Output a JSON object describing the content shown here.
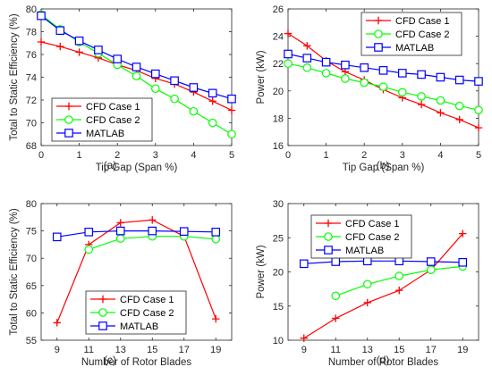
{
  "colors": {
    "cfd1": "#ff0000",
    "cfd2": "#00ff00",
    "matlab": "#0000ff",
    "axis": "#262626",
    "grid": "#ebebeb"
  },
  "chart_data": [
    {
      "panel_label": "(a)",
      "type": "line",
      "xlabel": "Tip Gap (Span %)",
      "ylabel": "Total to Static Efficiency (%)",
      "xlim": [
        0,
        5
      ],
      "ylim": [
        68,
        80
      ],
      "xticks": [
        0,
        1,
        2,
        3,
        4,
        5
      ],
      "xtick_labels": [
        "0",
        "1",
        "2",
        "3",
        "4",
        "5"
      ],
      "yticks": [
        68,
        70,
        72,
        74,
        76,
        78,
        80
      ],
      "ytick_labels": [
        "68",
        "70",
        "72",
        "74",
        "76",
        "78",
        "80"
      ],
      "grid": "off",
      "legend_position": "bottom-left",
      "series": [
        {
          "name": "CFD Case 1",
          "marker": "plus",
          "x": [
            0,
            0.5,
            1,
            1.5,
            2,
            2.5,
            3,
            3.5,
            4,
            4.5,
            5
          ],
          "y": [
            77.1,
            76.7,
            76.2,
            75.7,
            75.1,
            74.6,
            73.9,
            73.4,
            72.7,
            71.9,
            71.1
          ]
        },
        {
          "name": "CFD Case 2",
          "marker": "circle",
          "x": [
            0,
            0.5,
            1,
            1.5,
            2,
            2.5,
            3,
            3.5,
            4,
            4.5,
            5
          ],
          "y": [
            79.5,
            78.2,
            77.1,
            76.1,
            75.1,
            74.1,
            73.0,
            72.1,
            71.0,
            70.0,
            69.0
          ]
        },
        {
          "name": "MATLAB",
          "marker": "square",
          "x": [
            0,
            0.5,
            1,
            1.5,
            2,
            2.5,
            3,
            3.5,
            4,
            4.5,
            5
          ],
          "y": [
            79.4,
            78.1,
            77.2,
            76.4,
            75.6,
            74.9,
            74.3,
            73.7,
            73.1,
            72.6,
            72.1
          ]
        }
      ]
    },
    {
      "panel_label": "(b)",
      "type": "line",
      "xlabel": "Tip Gap (Span %)",
      "ylabel": "Power (kW)",
      "xlim": [
        0,
        5
      ],
      "ylim": [
        16,
        26
      ],
      "xticks": [
        0,
        1,
        2,
        3,
        4,
        5
      ],
      "xtick_labels": [
        "0",
        "1",
        "2",
        "3",
        "4",
        "5"
      ],
      "yticks": [
        16,
        18,
        20,
        22,
        24,
        26
      ],
      "ytick_labels": [
        "16",
        "18",
        "20",
        "22",
        "24",
        "26"
      ],
      "grid": "off",
      "legend_position": "top-right",
      "series": [
        {
          "name": "CFD Case 1",
          "marker": "plus",
          "x": [
            0,
            0.5,
            1,
            1.5,
            2,
            2.5,
            3,
            3.5,
            4,
            4.5,
            5
          ],
          "y": [
            24.2,
            23.3,
            22.2,
            21.4,
            20.8,
            20.1,
            19.5,
            19.0,
            18.4,
            17.9,
            17.3
          ]
        },
        {
          "name": "CFD Case 2",
          "marker": "circle",
          "x": [
            0,
            0.5,
            1,
            1.5,
            2,
            2.5,
            3,
            3.5,
            4,
            4.5,
            5
          ],
          "y": [
            22.0,
            21.7,
            21.3,
            20.9,
            20.6,
            20.3,
            19.9,
            19.6,
            19.3,
            18.9,
            18.6
          ]
        },
        {
          "name": "MATLAB",
          "marker": "square",
          "x": [
            0,
            0.5,
            1,
            1.5,
            2,
            2.5,
            3,
            3.5,
            4,
            4.5,
            5
          ],
          "y": [
            22.7,
            22.4,
            22.1,
            21.9,
            21.7,
            21.5,
            21.3,
            21.2,
            21.0,
            20.8,
            20.7
          ]
        }
      ]
    },
    {
      "panel_label": "(c)",
      "type": "line",
      "xlabel": "Number of Rotor Blades",
      "ylabel": "Total to Static Efficiency (%)",
      "xlim": [
        8,
        20
      ],
      "ylim": [
        55,
        80
      ],
      "xticks": [
        9,
        11,
        13,
        15,
        17,
        19
      ],
      "xtick_labels": [
        "9",
        "11",
        "13",
        "15",
        "17",
        "19"
      ],
      "yticks": [
        55,
        60,
        65,
        70,
        75,
        80
      ],
      "ytick_labels": [
        "55",
        "60",
        "65",
        "70",
        "75",
        "80"
      ],
      "grid": "off",
      "legend_position": "bottom-center",
      "series": [
        {
          "name": "CFD Case 1",
          "marker": "plus",
          "x": [
            9,
            11,
            13,
            15,
            17,
            19
          ],
          "y": [
            58.2,
            72.5,
            76.5,
            77.0,
            74.0,
            58.9
          ]
        },
        {
          "name": "CFD Case 2",
          "marker": "circle",
          "x": [
            11,
            13,
            15,
            17,
            19
          ],
          "y": [
            71.6,
            73.6,
            74.0,
            74.0,
            73.5
          ]
        },
        {
          "name": "MATLAB",
          "marker": "square",
          "x": [
            9,
            11,
            13,
            15,
            17,
            19
          ],
          "y": [
            73.9,
            74.8,
            75.0,
            75.0,
            74.9,
            74.8
          ]
        }
      ]
    },
    {
      "panel_label": "(d)",
      "type": "line",
      "xlabel": "Number of Rotor Blades",
      "ylabel": "Power (kW)",
      "xlim": [
        8,
        20
      ],
      "ylim": [
        10,
        30
      ],
      "xticks": [
        9,
        11,
        13,
        15,
        17,
        19
      ],
      "xtick_labels": [
        "9",
        "11",
        "13",
        "15",
        "17",
        "19"
      ],
      "yticks": [
        10,
        15,
        20,
        25,
        30
      ],
      "ytick_labels": [
        "10",
        "15",
        "20",
        "25",
        "30"
      ],
      "grid": "off",
      "legend_position": "top-left",
      "series": [
        {
          "name": "CFD Case 1",
          "marker": "plus",
          "x": [
            9,
            11,
            13,
            15,
            17,
            19
          ],
          "y": [
            10.3,
            13.2,
            15.5,
            17.3,
            20.3,
            25.6
          ]
        },
        {
          "name": "CFD Case 2",
          "marker": "circle",
          "x": [
            11,
            13,
            15,
            17,
            19
          ],
          "y": [
            16.5,
            18.2,
            19.4,
            20.3,
            20.8
          ]
        },
        {
          "name": "MATLAB",
          "marker": "square",
          "x": [
            9,
            11,
            13,
            15,
            17,
            19
          ],
          "y": [
            21.2,
            21.5,
            21.6,
            21.6,
            21.5,
            21.4
          ]
        }
      ]
    }
  ]
}
